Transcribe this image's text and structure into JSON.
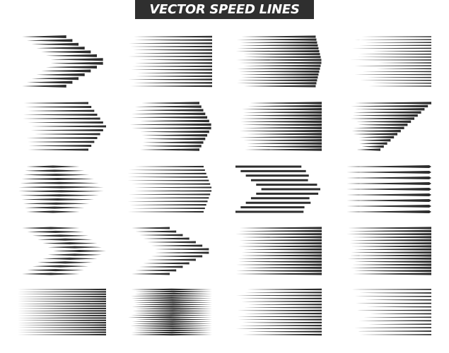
{
  "title": "VECTOR SPEED LINES",
  "colors": {
    "banner": "#2f2f2f",
    "lines": "#2d2d2d",
    "background": "#ffffff"
  },
  "grid": {
    "columns": 4,
    "rows": 5
  }
}
